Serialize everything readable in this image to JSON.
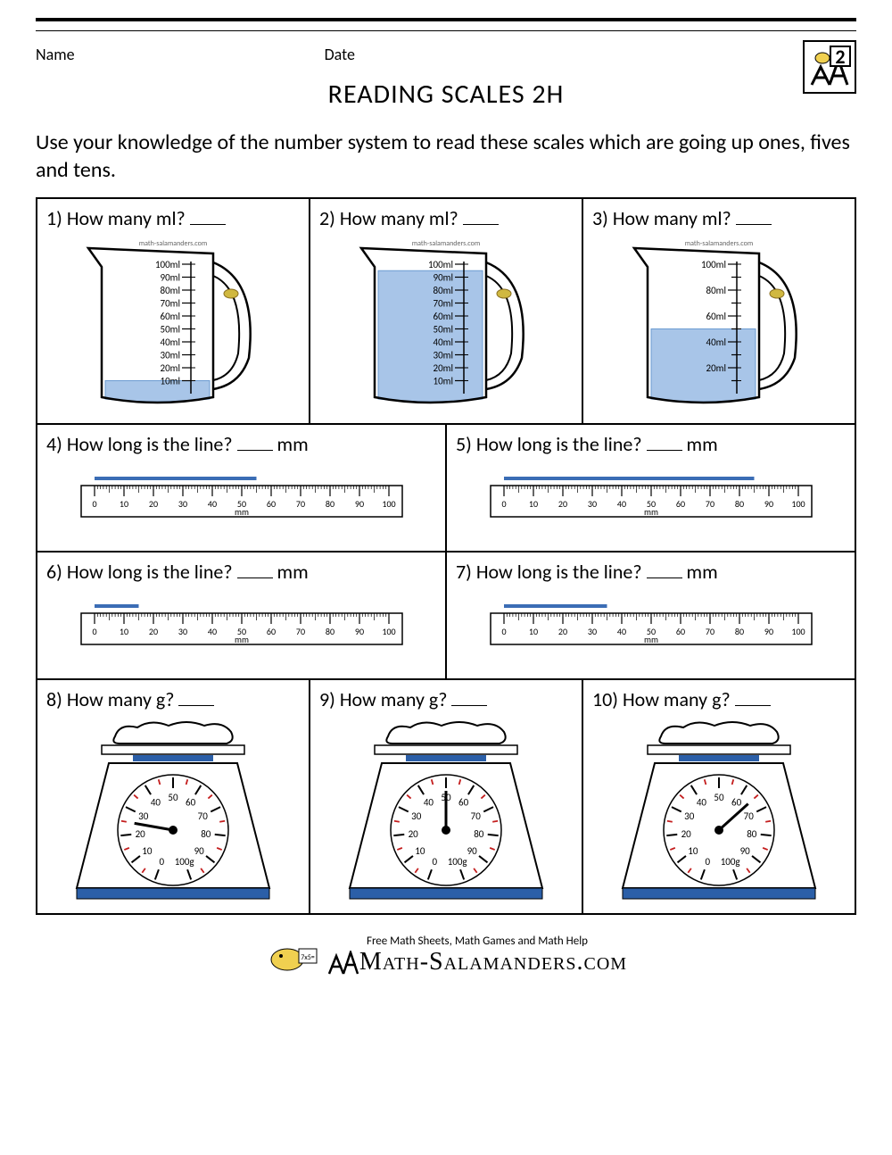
{
  "header": {
    "name_label": "Name",
    "date_label": "Date",
    "badge_number": "2"
  },
  "title": "READING SCALES 2H",
  "instructions": "Use your knowledge of the number system to read these scales which are going up ones, fives and tens.",
  "watermark": "math-salamanders.com",
  "jugs": {
    "scale_max": 100,
    "scale_step": 10,
    "unit": "ml",
    "q1": {
      "number": "1)",
      "question": "How many ml?",
      "fill_level": 10,
      "label_step": 10
    },
    "q2": {
      "number": "2)",
      "question": "How many ml?",
      "fill_level": 95,
      "label_step": 10
    },
    "q3": {
      "number": "3)",
      "question": "How many ml?",
      "fill_level": 50,
      "label_step": 20
    }
  },
  "rulers": {
    "range": [
      0,
      100
    ],
    "major_step": 10,
    "unit": "mm",
    "q4": {
      "number": "4)",
      "question": "How long is the line?",
      "suffix": "mm",
      "line_length": 55
    },
    "q5": {
      "number": "5)",
      "question": "How long is the line?",
      "suffix": "mm",
      "line_length": 85
    },
    "q6": {
      "number": "6)",
      "question": "How long is the line?",
      "suffix": "mm",
      "line_length": 15
    },
    "q7": {
      "number": "7)",
      "question": "How long is the line?",
      "suffix": "mm",
      "line_length": 35
    }
  },
  "scales": {
    "range": [
      0,
      100
    ],
    "unit": "g",
    "major_labels": [
      0,
      10,
      20,
      30,
      40,
      50,
      60,
      70,
      80,
      90,
      "100g"
    ],
    "q8": {
      "number": "8)",
      "question": "How many g?",
      "needle_value": 25
    },
    "q9": {
      "number": "9)",
      "question": "How many g?",
      "needle_value": 50
    },
    "q10": {
      "number": "10)",
      "question": "How many g?",
      "needle_value": 65
    }
  },
  "styling": {
    "water_color": "#a8c5e8",
    "water_border": "#6b9bd1",
    "line_color": "#3b6db5",
    "scale_base_color": "#2b5fa8",
    "scale_top_color": "#2b5fa8",
    "tick_major_color": "#c41e1e",
    "tick_minor_color": "#000000",
    "border_color": "#000000",
    "text_color": "#000000",
    "font_family": "Calibri, Arial, sans-serif",
    "title_fontsize": 30,
    "body_fontsize": 24,
    "question_fontsize": 22
  },
  "footer": {
    "tagline": "Free Math Sheets, Math Games and Math Help",
    "site": "Math-Salamanders.com"
  }
}
